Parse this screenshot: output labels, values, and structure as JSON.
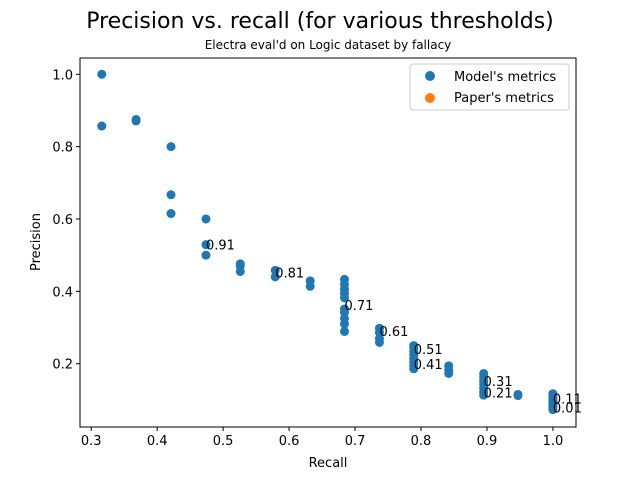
{
  "chart_data": {
    "type": "scatter",
    "title": "Precision vs. recall (for various thresholds)",
    "subtitle": "Electra eval'd on Logic dataset by fallacy",
    "xlabel": "Recall",
    "ylabel": "Precision",
    "xlim": [
      0.283,
      1.035
    ],
    "ylim": [
      0.025,
      1.045
    ],
    "xticks": [
      "0.3",
      "0.4",
      "0.5",
      "0.6",
      "0.7",
      "0.8",
      "0.9",
      "1.0"
    ],
    "yticks": [
      "0.2",
      "0.4",
      "0.6",
      "0.8",
      "1.0"
    ],
    "legend_position": "top-right",
    "grid": false,
    "series": [
      {
        "name": "Model's metrics",
        "color": "#1f77b4",
        "points": [
          [
            0.316,
            1.0
          ],
          [
            0.316,
            0.857
          ],
          [
            0.368,
            0.875
          ],
          [
            0.368,
            0.871
          ],
          [
            0.421,
            0.8
          ],
          [
            0.421,
            0.667
          ],
          [
            0.421,
            0.615
          ],
          [
            0.474,
            0.6
          ],
          [
            0.474,
            0.529
          ],
          [
            0.474,
            0.5
          ],
          [
            0.526,
            0.476
          ],
          [
            0.526,
            0.47
          ],
          [
            0.526,
            0.455
          ],
          [
            0.579,
            0.458
          ],
          [
            0.579,
            0.44
          ],
          [
            0.632,
            0.429
          ],
          [
            0.632,
            0.414
          ],
          [
            0.684,
            0.433
          ],
          [
            0.684,
            0.419
          ],
          [
            0.684,
            0.406
          ],
          [
            0.684,
            0.394
          ],
          [
            0.684,
            0.382
          ],
          [
            0.684,
            0.351
          ],
          [
            0.684,
            0.342
          ],
          [
            0.684,
            0.325
          ],
          [
            0.684,
            0.31
          ],
          [
            0.684,
            0.289
          ],
          [
            0.737,
            0.298
          ],
          [
            0.737,
            0.286
          ],
          [
            0.737,
            0.269
          ],
          [
            0.737,
            0.259
          ],
          [
            0.789,
            0.25
          ],
          [
            0.789,
            0.242
          ],
          [
            0.789,
            0.234
          ],
          [
            0.789,
            0.224
          ],
          [
            0.789,
            0.214
          ],
          [
            0.789,
            0.203
          ],
          [
            0.789,
            0.195
          ],
          [
            0.789,
            0.186
          ],
          [
            0.842,
            0.194
          ],
          [
            0.842,
            0.182
          ],
          [
            0.842,
            0.173
          ],
          [
            0.895,
            0.173
          ],
          [
            0.895,
            0.163
          ],
          [
            0.895,
            0.152
          ],
          [
            0.895,
            0.143
          ],
          [
            0.895,
            0.133
          ],
          [
            0.895,
            0.122
          ],
          [
            0.895,
            0.113
          ],
          [
            0.947,
            0.115
          ],
          [
            0.947,
            0.112
          ],
          [
            1.0,
            0.117
          ],
          [
            1.0,
            0.11
          ],
          [
            1.0,
            0.104
          ],
          [
            1.0,
            0.098
          ],
          [
            1.0,
            0.093
          ],
          [
            1.0,
            0.088
          ],
          [
            1.0,
            0.083
          ],
          [
            1.0,
            0.078
          ],
          [
            1.0,
            0.073
          ]
        ]
      },
      {
        "name": "Paper's metrics",
        "color": "#ff7f0e",
        "points": []
      }
    ],
    "annotations": [
      {
        "text": "0.91",
        "x": 0.474,
        "y": 0.529
      },
      {
        "text": "0.81",
        "x": 0.579,
        "y": 0.452
      },
      {
        "text": "0.71",
        "x": 0.684,
        "y": 0.362
      },
      {
        "text": "0.61",
        "x": 0.737,
        "y": 0.291
      },
      {
        "text": "0.51",
        "x": 0.789,
        "y": 0.241
      },
      {
        "text": "0.41",
        "x": 0.789,
        "y": 0.199
      },
      {
        "text": "0.31",
        "x": 0.895,
        "y": 0.152
      },
      {
        "text": "0.21",
        "x": 0.895,
        "y": 0.121
      },
      {
        "text": "0.11",
        "x": 1.0,
        "y": 0.104
      },
      {
        "text": "0.01",
        "x": 1.0,
        "y": 0.079
      }
    ]
  }
}
